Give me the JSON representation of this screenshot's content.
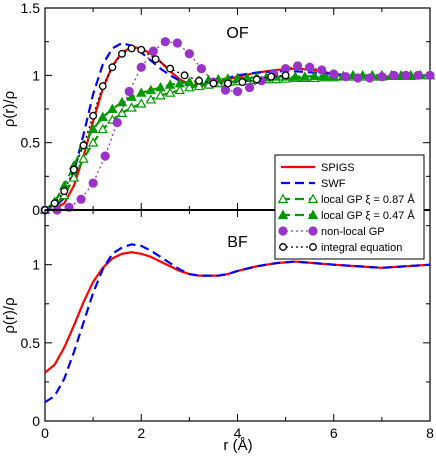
{
  "chart_data": {
    "type": "line",
    "xlabel": "r (Å)",
    "x_ticks": [
      "0",
      "2",
      "4",
      "6",
      "8"
    ],
    "xlim": [
      0,
      8
    ],
    "panels": [
      {
        "id": "top",
        "label": "OF",
        "ylabel": "ρ(r)/ρ",
        "ylim": [
          0,
          1.5
        ],
        "y_ticks": [
          "0",
          "0.5",
          "1",
          "1.5"
        ],
        "series": [
          {
            "name": "SPIGS",
            "color": "#ff0000",
            "style": "solid",
            "marker": "none",
            "x": [
              0,
              0.2,
              0.4,
              0.6,
              0.8,
              1.0,
              1.2,
              1.4,
              1.6,
              1.8,
              2.0,
              2.2,
              2.4,
              2.6,
              2.8,
              3.0,
              3.2,
              3.4,
              3.6,
              3.8,
              4.0,
              4.4,
              4.8,
              5.2,
              5.6,
              6.0,
              6.5,
              7.0,
              7.5,
              8.0
            ],
            "y": [
              0.0,
              0.01,
              0.05,
              0.18,
              0.4,
              0.66,
              0.9,
              1.07,
              1.17,
              1.21,
              1.2,
              1.16,
              1.1,
              1.03,
              0.97,
              0.93,
              0.92,
              0.93,
              0.95,
              0.97,
              0.99,
              1.02,
              1.04,
              1.05,
              1.04,
              1.01,
              0.99,
              0.98,
              0.99,
              1.0
            ]
          },
          {
            "name": "SWF",
            "color": "#0000ff",
            "style": "dashed",
            "marker": "none",
            "x": [
              0,
              0.2,
              0.4,
              0.6,
              0.8,
              1.0,
              1.2,
              1.4,
              1.6,
              1.8,
              2.0,
              2.2,
              2.4,
              2.6,
              2.8,
              3.0,
              3.2,
              3.4,
              3.6,
              3.8,
              4.0,
              4.4,
              4.8,
              5.2,
              5.6,
              6.0,
              6.5,
              7.0,
              7.5,
              8.0
            ],
            "y": [
              0.0,
              0.02,
              0.09,
              0.28,
              0.56,
              0.86,
              1.08,
              1.2,
              1.24,
              1.22,
              1.17,
              1.11,
              1.05,
              1.0,
              0.96,
              0.94,
              0.93,
              0.94,
              0.96,
              0.98,
              1.0,
              1.02,
              1.03,
              1.03,
              1.02,
              1.01,
              0.99,
              0.99,
              0.99,
              1.0
            ]
          },
          {
            "name": "local GP ξ = 0.87 Å",
            "color": "#009900",
            "style": "dashed",
            "marker": "triangle-open",
            "x": [
              0,
              0.2,
              0.4,
              0.6,
              0.8,
              1.0,
              1.2,
              1.4,
              1.6,
              1.8,
              2.0,
              2.2,
              2.4,
              2.6,
              2.8,
              3.0,
              3.2,
              3.4,
              3.6,
              3.8,
              4.0,
              4.2,
              4.4,
              4.6,
              4.8,
              5.0,
              5.2,
              5.4,
              5.6,
              5.8,
              6.0,
              6.2,
              6.4,
              6.6,
              6.8,
              7.0,
              7.2,
              7.4,
              7.6,
              7.8,
              8.0
            ],
            "y": [
              0.0,
              0.03,
              0.11,
              0.24,
              0.38,
              0.5,
              0.6,
              0.67,
              0.72,
              0.76,
              0.79,
              0.82,
              0.85,
              0.87,
              0.89,
              0.91,
              0.92,
              0.93,
              0.94,
              0.95,
              0.955,
              0.96,
              0.965,
              0.97,
              0.97,
              0.975,
              0.98,
              0.98,
              0.98,
              0.985,
              0.985,
              0.99,
              0.99,
              0.99,
              0.99,
              0.99,
              0.995,
              0.995,
              0.995,
              1.0,
              1.0
            ]
          },
          {
            "name": "local GP ξ = 0.47 Å",
            "color": "#009900",
            "style": "dashed",
            "marker": "triangle-filled",
            "x": [
              0,
              0.2,
              0.4,
              0.6,
              0.8,
              1.0,
              1.2,
              1.4,
              1.6,
              1.8,
              2.0,
              2.2,
              2.4,
              2.6,
              2.8,
              3.0,
              3.2,
              3.4,
              3.6,
              3.8,
              4.0,
              4.2,
              4.4,
              4.6,
              4.8,
              5.0,
              5.2,
              5.4,
              5.6,
              5.8,
              6.0,
              6.2,
              6.4,
              6.6,
              6.8,
              7.0,
              7.2,
              7.4,
              7.6,
              7.8,
              8.0
            ],
            "y": [
              0.0,
              0.06,
              0.18,
              0.33,
              0.48,
              0.6,
              0.69,
              0.75,
              0.8,
              0.84,
              0.87,
              0.89,
              0.91,
              0.93,
              0.94,
              0.95,
              0.96,
              0.965,
              0.97,
              0.975,
              0.98,
              0.98,
              0.985,
              0.985,
              0.99,
              0.99,
              0.99,
              0.99,
              0.995,
              0.995,
              0.995,
              0.995,
              1.0,
              1.0,
              1.0,
              1.0,
              1.0,
              1.0,
              1.0,
              1.0,
              1.0
            ]
          },
          {
            "name": "non-local GP",
            "color": "#9933cc",
            "style": "dotted",
            "marker": "circle-filled",
            "x": [
              0,
              0.25,
              0.5,
              0.75,
              1.0,
              1.25,
              1.5,
              1.75,
              2.0,
              2.25,
              2.5,
              2.75,
              3.0,
              3.25,
              3.5,
              3.75,
              4.0,
              4.25,
              4.5,
              4.75,
              5.0,
              5.25,
              5.5,
              5.75,
              6.0,
              6.25,
              6.5,
              6.75,
              7.0,
              7.25,
              7.5,
              7.75,
              8.0
            ],
            "y": [
              0.0,
              0.0,
              0.02,
              0.08,
              0.2,
              0.4,
              0.65,
              0.88,
              1.06,
              1.18,
              1.25,
              1.24,
              1.16,
              1.05,
              0.95,
              0.89,
              0.88,
              0.91,
              0.96,
              1.01,
              1.05,
              1.07,
              1.06,
              1.04,
              1.01,
              0.99,
              0.98,
              0.98,
              0.99,
              1.0,
              1.0,
              1.0,
              1.0
            ]
          },
          {
            "name": "integral equation",
            "color": "#000000",
            "style": "dotted",
            "marker": "circle-open",
            "x": [
              0,
              0.2,
              0.4,
              0.6,
              0.8,
              1.0,
              1.2,
              1.4,
              1.6,
              1.8,
              2.0,
              2.3,
              2.6,
              2.9,
              3.2,
              3.5,
              3.8,
              4.1,
              4.4,
              4.7,
              5.0
            ],
            "y": [
              0.0,
              0.05,
              0.14,
              0.3,
              0.48,
              0.7,
              0.92,
              1.06,
              1.16,
              1.2,
              1.19,
              1.12,
              1.05,
              1.0,
              0.96,
              0.94,
              0.94,
              0.95,
              0.97,
              0.99,
              1.0
            ]
          }
        ]
      },
      {
        "id": "bottom",
        "label": "BF",
        "ylabel": "ρ(r)/ρ",
        "ylim": [
          0,
          1.35
        ],
        "y_ticks": [
          "0",
          "0.5",
          "1"
        ],
        "series": [
          {
            "name": "SPIGS",
            "color": "#ff0000",
            "style": "solid",
            "marker": "none",
            "x": [
              0,
              0.2,
              0.4,
              0.6,
              0.8,
              1.0,
              1.2,
              1.4,
              1.6,
              1.8,
              2.0,
              2.2,
              2.4,
              2.6,
              2.8,
              3.0,
              3.2,
              3.4,
              3.6,
              3.8,
              4.0,
              4.4,
              4.8,
              5.2,
              5.6,
              6.0,
              6.5,
              7.0,
              7.5,
              8.0
            ],
            "y": [
              0.31,
              0.36,
              0.47,
              0.61,
              0.76,
              0.89,
              0.98,
              1.04,
              1.07,
              1.08,
              1.07,
              1.05,
              1.02,
              0.99,
              0.96,
              0.94,
              0.93,
              0.93,
              0.93,
              0.94,
              0.96,
              0.99,
              1.01,
              1.02,
              1.01,
              1.0,
              0.99,
              0.98,
              0.99,
              1.0
            ]
          },
          {
            "name": "SWF",
            "color": "#0000ff",
            "style": "dashed",
            "marker": "none",
            "x": [
              0,
              0.2,
              0.4,
              0.6,
              0.8,
              1.0,
              1.2,
              1.4,
              1.6,
              1.8,
              2.0,
              2.2,
              2.4,
              2.6,
              2.8,
              3.0,
              3.2,
              3.4,
              3.6,
              3.8,
              4.0,
              4.4,
              4.8,
              5.2,
              5.6,
              6.0,
              6.5,
              7.0,
              7.5,
              8.0
            ],
            "y": [
              0.12,
              0.16,
              0.27,
              0.44,
              0.63,
              0.82,
              0.97,
              1.07,
              1.11,
              1.13,
              1.12,
              1.09,
              1.05,
              1.01,
              0.97,
              0.94,
              0.93,
              0.93,
              0.93,
              0.94,
              0.96,
              0.99,
              1.01,
              1.02,
              1.01,
              1.0,
              0.99,
              0.98,
              0.99,
              1.0
            ]
          }
        ]
      }
    ]
  }
}
